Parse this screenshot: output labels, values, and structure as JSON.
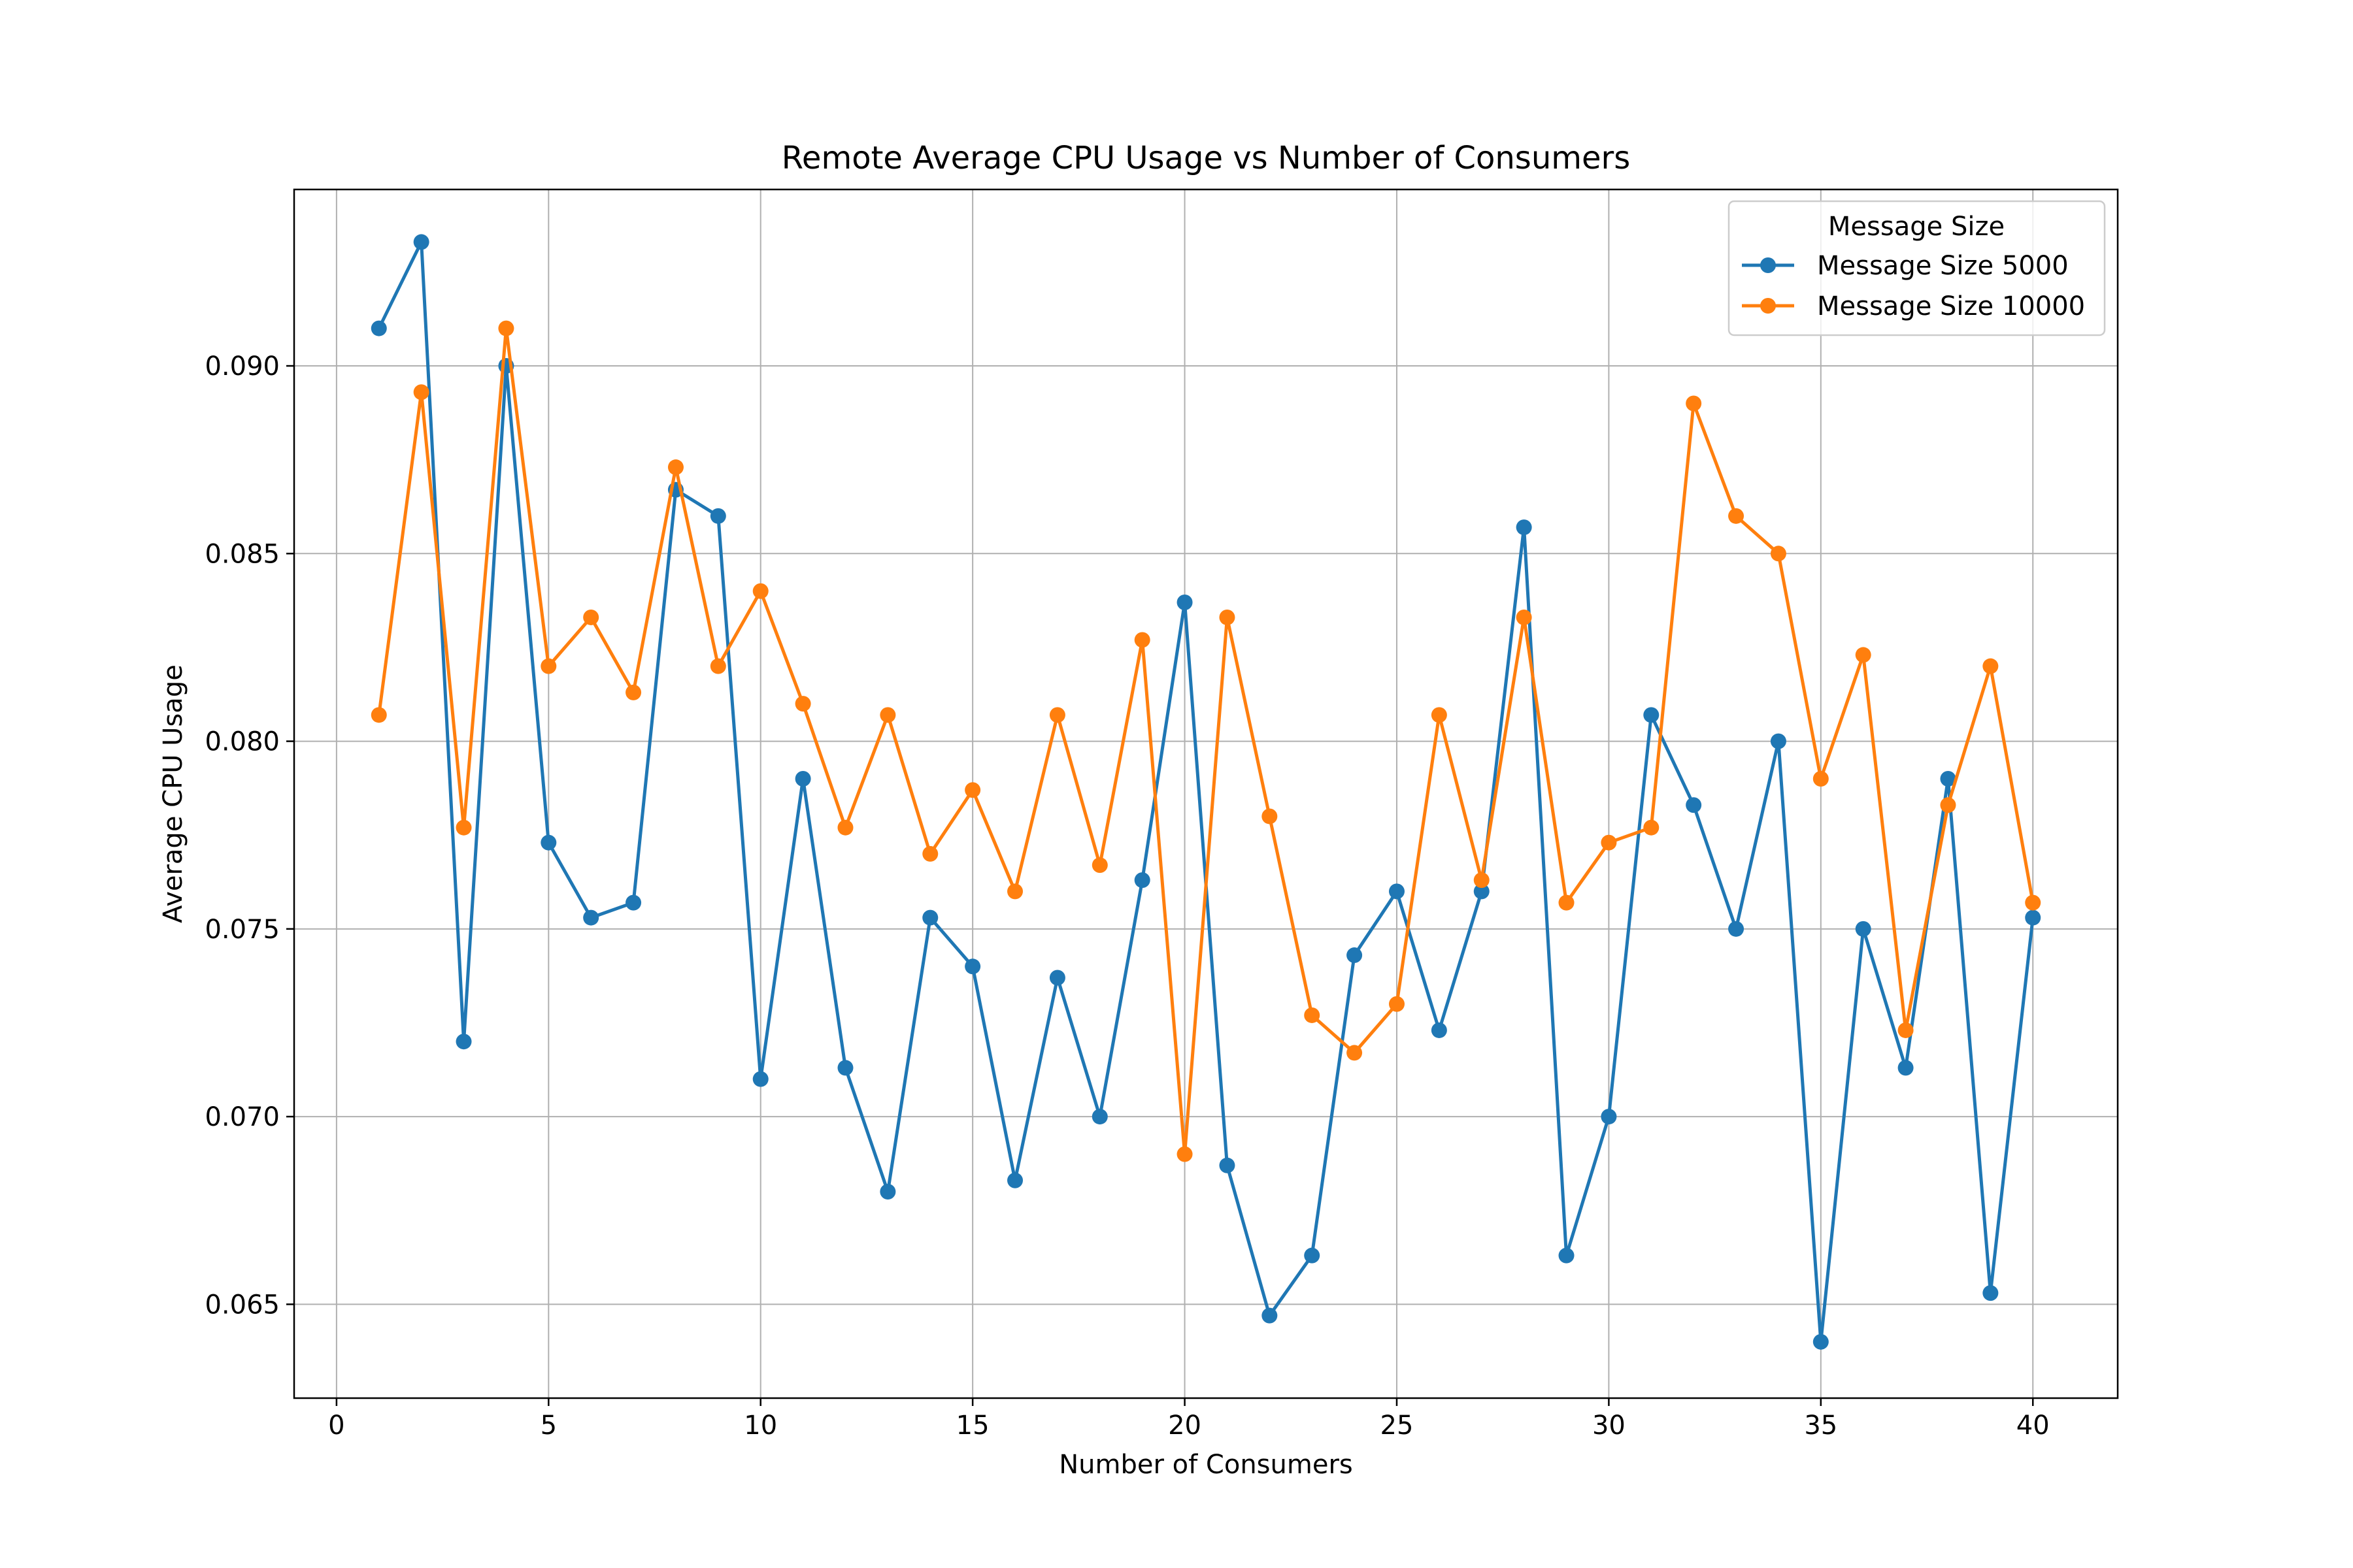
{
  "chart_data": {
    "type": "line",
    "title": "Remote Average CPU Usage vs Number of Consumers",
    "xlabel": "Number of Consumers",
    "ylabel": "Average CPU Usage",
    "xlim": [
      -1,
      42
    ],
    "ylim": [
      0.0625,
      0.0947
    ],
    "xticks": [
      0,
      5,
      10,
      15,
      20,
      25,
      30,
      35,
      40
    ],
    "xtick_labels": [
      "0",
      "5",
      "10",
      "15",
      "20",
      "25",
      "30",
      "35",
      "40"
    ],
    "yticks": [
      0.065,
      0.07,
      0.075,
      0.08,
      0.085,
      0.09
    ],
    "ytick_labels": [
      "0.065",
      "0.070",
      "0.075",
      "0.080",
      "0.085",
      "0.090"
    ],
    "grid": true,
    "legend": {
      "title": "Message Size",
      "position": "top-right"
    },
    "x": [
      1,
      2,
      3,
      4,
      5,
      6,
      7,
      8,
      9,
      10,
      11,
      12,
      13,
      14,
      15,
      16,
      17,
      18,
      19,
      20,
      21,
      22,
      23,
      24,
      25,
      26,
      27,
      28,
      29,
      30,
      31,
      32,
      33,
      34,
      35,
      36,
      37,
      38,
      39,
      40
    ],
    "series": [
      {
        "name": "Message Size 5000",
        "color": "#1f77b4",
        "values": [
          0.091,
          0.0933,
          0.072,
          0.09,
          0.0773,
          0.0753,
          0.0757,
          0.0867,
          0.086,
          0.071,
          0.079,
          0.0713,
          0.068,
          0.0753,
          0.074,
          0.0683,
          0.0737,
          0.07,
          0.0763,
          0.0837,
          0.0687,
          0.0647,
          0.0663,
          0.0743,
          0.076,
          0.0723,
          0.076,
          0.0857,
          0.0663,
          0.07,
          0.0807,
          0.0783,
          0.075,
          0.08,
          0.064,
          0.075,
          0.0713,
          0.079,
          0.0653,
          0.0753
        ]
      },
      {
        "name": "Message Size 10000",
        "color": "#ff7f0e",
        "values": [
          0.0807,
          0.0893,
          0.0777,
          0.091,
          0.082,
          0.0833,
          0.0813,
          0.0873,
          0.082,
          0.084,
          0.081,
          0.0777,
          0.0807,
          0.077,
          0.0787,
          0.076,
          0.0807,
          0.0767,
          0.0827,
          0.069,
          0.0833,
          0.078,
          0.0727,
          0.0717,
          0.073,
          0.0807,
          0.0763,
          0.0833,
          0.0757,
          0.0773,
          0.0777,
          0.089,
          0.086,
          0.085,
          0.079,
          0.0823,
          0.0723,
          0.0783,
          0.082,
          0.0757
        ]
      }
    ]
  }
}
